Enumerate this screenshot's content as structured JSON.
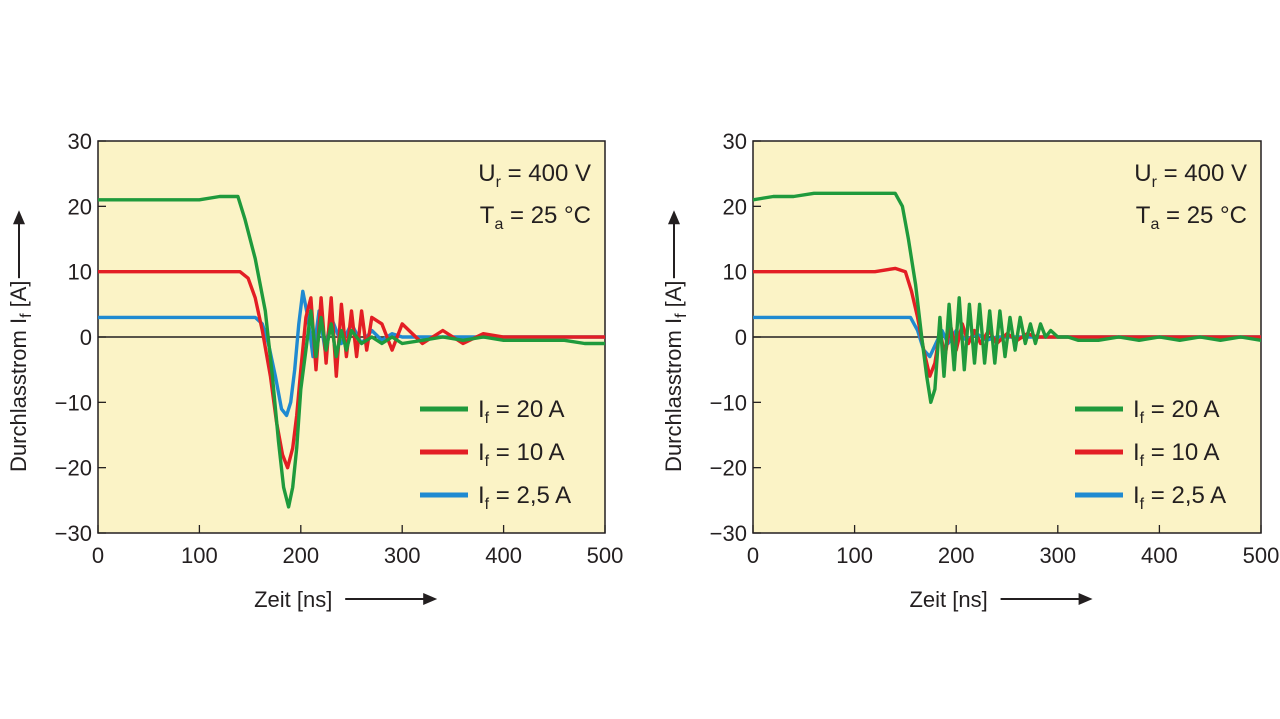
{
  "chart_data": [
    {
      "type": "line",
      "xlabel": "Zeit [ns]",
      "ylabel": "Durchlasstrom",
      "ylabel_symbol": "I",
      "ylabel_sub": "f",
      "ylabel_unit": "[A]",
      "xlim": [
        0,
        500
      ],
      "ylim": [
        -30,
        30
      ],
      "x_ticks": [
        0,
        100,
        200,
        300,
        400,
        500
      ],
      "y_ticks": [
        30,
        20,
        10,
        0,
        -10,
        -20,
        -30
      ],
      "grid": false,
      "legend_position": "bottom-right",
      "annotations": [
        {
          "symbol": "U",
          "sub": "r",
          "text": " = 400 V"
        },
        {
          "symbol": "T",
          "sub": "a",
          "text": " = 25 °C"
        }
      ],
      "series": [
        {
          "name_symbol": "I",
          "name_sub": "f",
          "name": " = 20 A",
          "color": "#1f9a3c",
          "x": [
            0,
            20,
            40,
            60,
            80,
            100,
            120,
            138,
            145,
            155,
            165,
            172,
            178,
            183,
            188,
            192,
            196,
            200,
            205,
            210,
            215,
            220,
            225,
            230,
            235,
            240,
            245,
            250,
            260,
            270,
            280,
            290,
            300,
            320,
            340,
            360,
            380,
            400,
            420,
            440,
            460,
            480,
            500
          ],
          "y": [
            21,
            21,
            21,
            21,
            21,
            21,
            21.5,
            21.5,
            18,
            12,
            4,
            -6,
            -16,
            -23,
            -26,
            -23,
            -17,
            -8,
            -2,
            4,
            -3,
            3,
            -2,
            2,
            -3,
            1,
            -2,
            1,
            -1,
            0,
            -1,
            0,
            -1,
            -0.5,
            0,
            -0.5,
            0,
            -0.5,
            -0.5,
            -0.5,
            -0.5,
            -1,
            -1
          ]
        },
        {
          "name_symbol": "I",
          "name_sub": "f",
          "name": " = 10 A",
          "color": "#e31e24",
          "x": [
            0,
            20,
            40,
            60,
            80,
            100,
            120,
            140,
            148,
            155,
            162,
            170,
            176,
            182,
            187,
            192,
            196,
            200,
            205,
            210,
            215,
            220,
            225,
            230,
            235,
            240,
            245,
            250,
            255,
            260,
            265,
            270,
            280,
            290,
            300,
            320,
            340,
            360,
            380,
            400,
            420,
            440,
            460,
            480,
            500
          ],
          "y": [
            10,
            10,
            10,
            10,
            10,
            10,
            10,
            10,
            9,
            6,
            1,
            -6,
            -13,
            -18,
            -20,
            -17,
            -12,
            -5,
            3,
            6,
            -5,
            6,
            -4,
            6,
            -6,
            5,
            -3,
            4,
            -3,
            4,
            -2,
            3,
            2,
            -2,
            2,
            -1,
            1,
            -1,
            0.5,
            0,
            0,
            0,
            0,
            0,
            0
          ]
        },
        {
          "name_symbol": "I",
          "name_sub": "f",
          "name": " = 2,5 A",
          "color": "#1f8ad1",
          "x": [
            0,
            20,
            40,
            60,
            80,
            100,
            120,
            140,
            155,
            162,
            168,
            175,
            181,
            186,
            190,
            194,
            198,
            202,
            207,
            212,
            218,
            224,
            230,
            240,
            250,
            260,
            270,
            280,
            290,
            300,
            320,
            340,
            360,
            380,
            400,
            420,
            440,
            460,
            480,
            500
          ],
          "y": [
            3,
            3,
            3,
            3,
            3,
            3,
            3,
            3,
            3,
            2,
            -1,
            -6,
            -11,
            -12,
            -10,
            -5,
            2,
            7,
            3,
            -3,
            4,
            -2,
            3,
            -1,
            2,
            -1,
            1,
            -0.5,
            0.5,
            0,
            0,
            0,
            0,
            0,
            0,
            0,
            0,
            0,
            0,
            0
          ]
        }
      ]
    },
    {
      "type": "line",
      "xlabel": "Zeit [ns]",
      "ylabel": "Durchlasstrom",
      "ylabel_symbol": "I",
      "ylabel_sub": "f",
      "ylabel_unit": "[A]",
      "xlim": [
        0,
        500
      ],
      "ylim": [
        -30,
        30
      ],
      "x_ticks": [
        0,
        100,
        200,
        300,
        400,
        500
      ],
      "y_ticks": [
        30,
        20,
        10,
        0,
        -10,
        -20,
        -30
      ],
      "grid": false,
      "legend_position": "bottom-right",
      "annotations": [
        {
          "symbol": "U",
          "sub": "r",
          "text": " = 400 V"
        },
        {
          "symbol": "T",
          "sub": "a",
          "text": " = 25 °C"
        }
      ],
      "series": [
        {
          "name_symbol": "I",
          "name_sub": "f",
          "name": " = 20 A",
          "color": "#1f9a3c",
          "x": [
            0,
            20,
            40,
            60,
            80,
            100,
            120,
            140,
            147,
            153,
            160,
            166,
            171,
            175,
            179,
            184,
            188,
            193,
            198,
            203,
            208,
            213,
            218,
            223,
            228,
            233,
            238,
            243,
            248,
            253,
            258,
            263,
            268,
            273,
            278,
            283,
            288,
            293,
            300,
            310,
            320,
            340,
            360,
            380,
            400,
            420,
            440,
            460,
            480,
            500
          ],
          "y": [
            21,
            21.5,
            21.5,
            22,
            22,
            22,
            22,
            22,
            20,
            15,
            8,
            0,
            -6,
            -10,
            -8,
            3,
            -6,
            5,
            -5,
            6,
            -5,
            5,
            -4,
            5,
            -4,
            4,
            -4,
            4,
            -3,
            3,
            -2,
            3,
            -1,
            2,
            -1,
            2,
            0,
            1,
            0,
            0,
            -0.5,
            -0.5,
            0,
            -0.5,
            0,
            -0.5,
            0,
            -0.5,
            0,
            -0.5
          ]
        },
        {
          "name_symbol": "I",
          "name_sub": "f",
          "name": " = 10 A",
          "color": "#e31e24",
          "x": [
            0,
            20,
            40,
            60,
            80,
            100,
            120,
            140,
            150,
            156,
            162,
            168,
            174,
            179,
            184,
            189,
            194,
            200,
            206,
            212,
            218,
            224,
            232,
            240,
            250,
            260,
            270,
            280,
            300,
            320,
            340,
            360,
            380,
            400,
            420,
            440,
            460,
            480,
            500
          ],
          "y": [
            10,
            10,
            10,
            10,
            10,
            10,
            10,
            10.5,
            10,
            7,
            3,
            -2,
            -6,
            -4,
            1,
            -3,
            2,
            -2,
            2,
            -1,
            1,
            -1,
            1,
            -1,
            0.5,
            -0.5,
            0.5,
            0,
            0,
            0,
            0,
            0,
            0,
            0,
            0,
            0,
            0,
            0,
            0
          ]
        },
        {
          "name_symbol": "I",
          "name_sub": "f",
          "name": " = 2,5 A",
          "color": "#1f8ad1",
          "x": [
            0,
            20,
            40,
            60,
            80,
            100,
            120,
            140,
            155,
            162,
            168,
            174,
            180,
            186,
            192,
            200,
            210,
            220,
            230,
            240,
            250,
            260,
            280,
            300,
            320,
            340,
            360,
            380,
            400,
            420,
            440,
            460,
            480,
            500
          ],
          "y": [
            3,
            3,
            3,
            3,
            3,
            3,
            3,
            3,
            3,
            1,
            -2,
            -3,
            -1,
            1,
            -1,
            1,
            -0.5,
            0.5,
            -0.5,
            0,
            0,
            0,
            0,
            0,
            0,
            0,
            0,
            0,
            0,
            0,
            0,
            0,
            0,
            0
          ]
        }
      ]
    }
  ]
}
